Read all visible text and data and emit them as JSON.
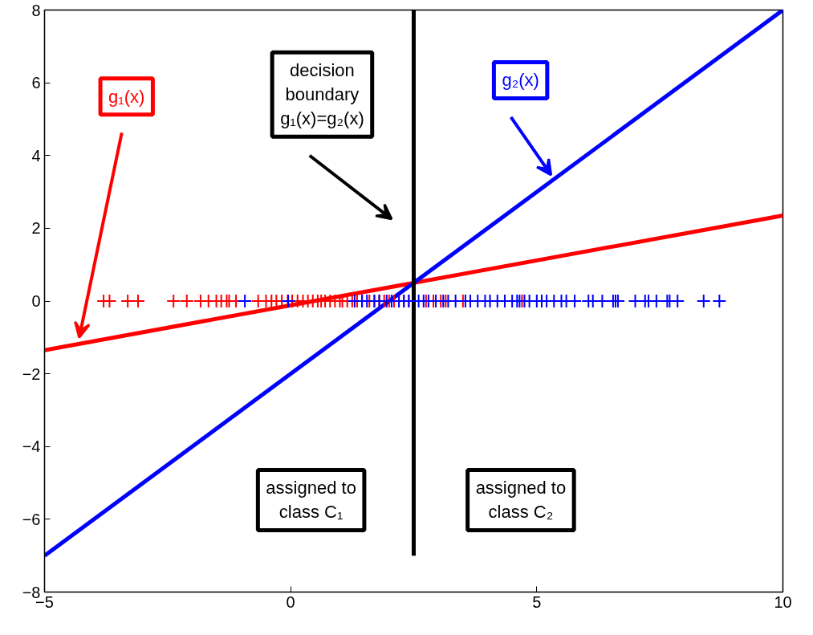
{
  "chart_data": {
    "type": "line",
    "xlim": [
      -5,
      10
    ],
    "ylim": [
      -8,
      8
    ],
    "xticks": [
      -5,
      0,
      5,
      10
    ],
    "yticks": [
      -8,
      -6,
      -4,
      -2,
      0,
      2,
      4,
      6,
      8
    ],
    "grid": false,
    "series": [
      {
        "name": "g₁(x)",
        "color": "#ff0000",
        "x": [
          -5,
          10
        ],
        "values": [
          -1.35,
          2.35
        ]
      },
      {
        "name": "g₂(x)",
        "color": "#0000ff",
        "x": [
          -5,
          10
        ],
        "values": [
          -7,
          8
        ]
      },
      {
        "color": "#000000",
        "x": [
          2.5,
          2.5
        ],
        "values": [
          -7,
          8
        ]
      },
      {
        "color": "#ff0000",
        "type": "scatter",
        "marker": "cross",
        "x": [
          -3.8,
          -3.68,
          -3.31,
          -3.1,
          -2.38,
          -2.11,
          -1.83,
          -1.67,
          -1.51,
          -1.41,
          -1.3,
          -1.25,
          -1.11,
          -0.66,
          -0.5,
          -0.39,
          -0.29,
          -0.18,
          -0.06,
          0.03,
          0.14,
          0.25,
          0.35,
          0.45,
          0.55,
          0.62,
          0.7,
          0.8,
          0.9,
          1.0,
          1.05,
          1.15,
          1.25,
          1.35,
          1.45,
          1.6,
          1.7,
          1.8,
          1.9,
          2.0,
          2.1,
          2.2,
          2.3,
          2.4,
          2.75,
          2.9,
          3.05,
          3.15,
          3.5,
          4.7
        ],
        "values": [
          0,
          0,
          0,
          0,
          0,
          0,
          0,
          0,
          0,
          0,
          0,
          0,
          0,
          0,
          0,
          0,
          0,
          0,
          0,
          0,
          0,
          0,
          0,
          0,
          0,
          0,
          0,
          0,
          0,
          0,
          0,
          0,
          0,
          0,
          0,
          0,
          0,
          0,
          0,
          0,
          0,
          0,
          0,
          0,
          0,
          0,
          0,
          0,
          0,
          0
        ]
      },
      {
        "color": "#0000ff",
        "type": "scatter",
        "marker": "cross",
        "x": [
          -0.93,
          -0.05,
          1.3,
          1.45,
          1.55,
          1.7,
          1.8,
          1.95,
          2.05,
          2.2,
          2.3,
          2.4,
          2.6,
          2.7,
          2.8,
          2.95,
          3.1,
          3.2,
          3.35,
          3.55,
          3.65,
          3.8,
          3.95,
          4.05,
          4.2,
          4.35,
          4.5,
          4.6,
          4.65,
          4.75,
          4.85,
          5.0,
          5.1,
          5.2,
          5.35,
          5.5,
          5.6,
          5.77,
          6.05,
          6.14,
          6.33,
          6.55,
          6.6,
          6.65,
          7.0,
          7.2,
          7.27,
          7.43,
          7.65,
          7.7,
          7.86,
          8.39,
          8.71
        ],
        "values": [
          0,
          0,
          0,
          0,
          0,
          0,
          0,
          0,
          0,
          0,
          0,
          0,
          0,
          0,
          0,
          0,
          0,
          0,
          0,
          0,
          0,
          0,
          0,
          0,
          0,
          0,
          0,
          0,
          0,
          0,
          0,
          0,
          0,
          0,
          0,
          0,
          0,
          0,
          0,
          0,
          0,
          0,
          0,
          0,
          0,
          0,
          0,
          0,
          0,
          0,
          0,
          0,
          0
        ]
      }
    ],
    "annotations": [
      "decision\nboundary\ng₁(x)=g₂(x)",
      "assigned to\nclass C₁",
      "assigned to\nclass C₂"
    ]
  }
}
